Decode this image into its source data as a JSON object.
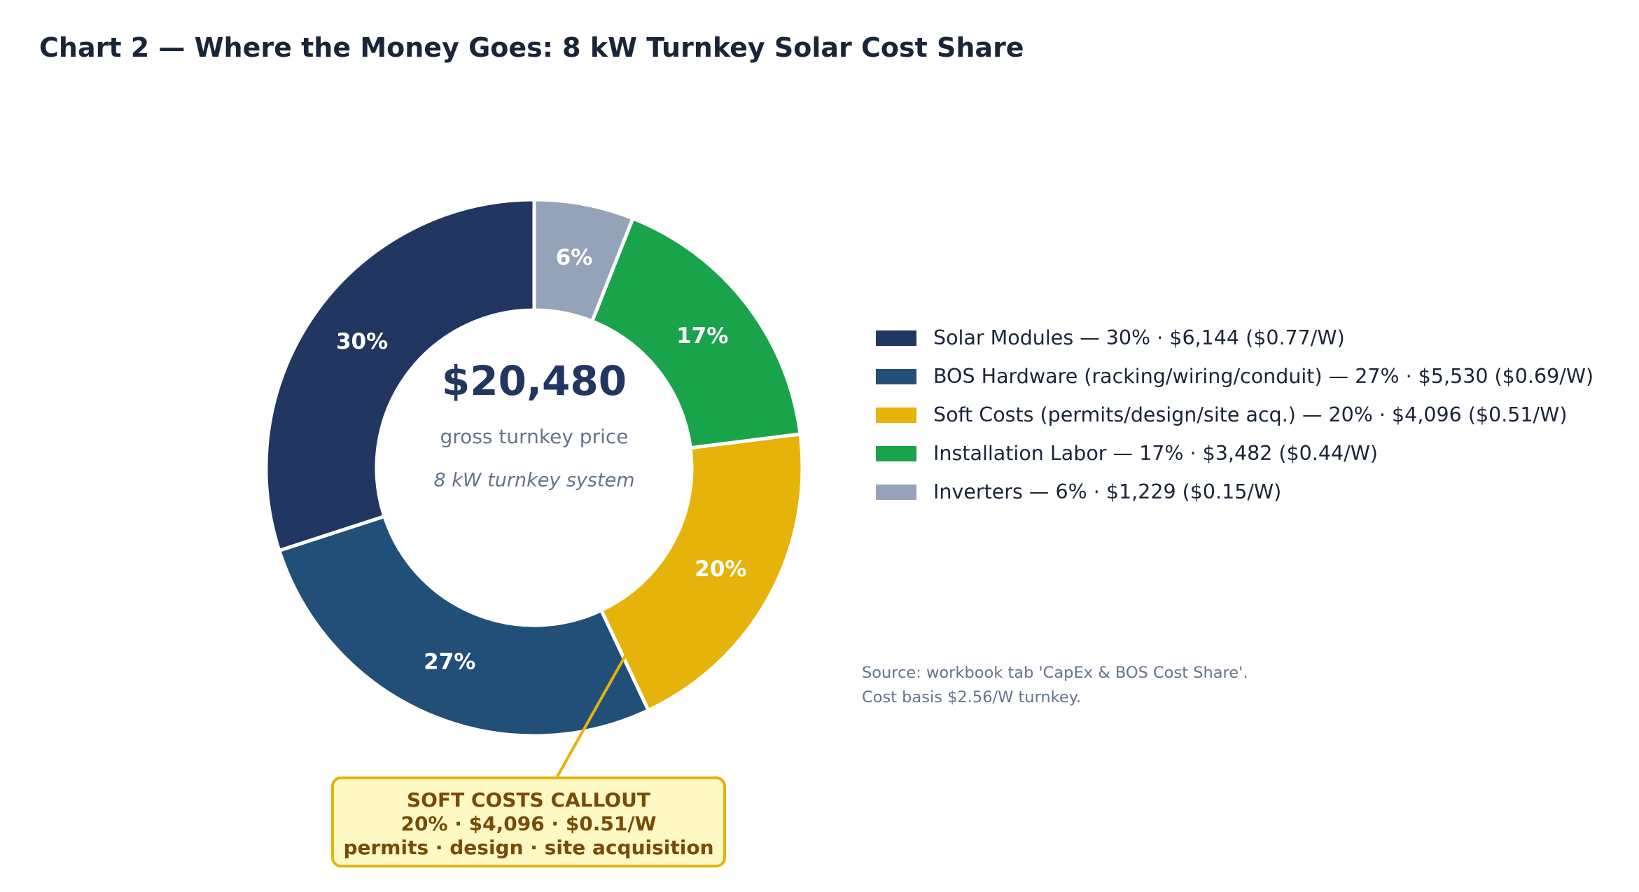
{
  "title": "Chart 2 — Where the Money Goes: 8 kW Turnkey Solar Cost Share",
  "center": {
    "value": "$20,480",
    "label": "gross turnkey price",
    "sublabel": "8 kW turnkey system"
  },
  "chart_data": {
    "type": "pie",
    "style": "donut",
    "title": "Chart 2 — Where the Money Goes: 8 kW Turnkey Solar Cost Share",
    "categories": [
      "Inverters",
      "Installation Labor",
      "Soft Costs (permits/design/site acq.)",
      "BOS Hardware (racking/wiring/conduit)",
      "Solar Modules"
    ],
    "values": [
      6,
      17,
      20,
      27,
      30
    ],
    "data_labels": [
      "6%",
      "17%",
      "20%",
      "27%",
      "30%"
    ],
    "dollars": [
      1229,
      3482,
      4096,
      5530,
      6144
    ],
    "per_watt": [
      0.15,
      0.44,
      0.51,
      0.69,
      0.77
    ],
    "colors": [
      "#94a3b8",
      "#19a34a",
      "#e6b30b",
      "#214f78",
      "#213761"
    ],
    "direction": "clockwise from top",
    "legend_position": "right"
  },
  "legend": [
    {
      "label": "Solar Modules — 30% · $6,144 ($0.77/W)",
      "color": "#213761"
    },
    {
      "label": "BOS Hardware (racking/wiring/conduit) — 27% · $5,530 ($0.69/W)",
      "color": "#214f78"
    },
    {
      "label": "Soft Costs (permits/design/site acq.) — 20% · $4,096 ($0.51/W)",
      "color": "#e6b30b"
    },
    {
      "label": "Installation Labor — 17% · $3,482 ($0.44/W)",
      "color": "#19a34a"
    },
    {
      "label": "Inverters — 6% · $1,229 ($0.15/W)",
      "color": "#94a3b8"
    }
  ],
  "source": {
    "line1": "Source: workbook tab 'CapEx & BOS Cost Share'.",
    "line2": "Cost basis $2.56/W turnkey."
  },
  "callout": {
    "line1": "SOFT COSTS CALLOUT",
    "line2": "20% · $4,096 · $0.51/W",
    "line3": "permits · design · site acquisition"
  }
}
